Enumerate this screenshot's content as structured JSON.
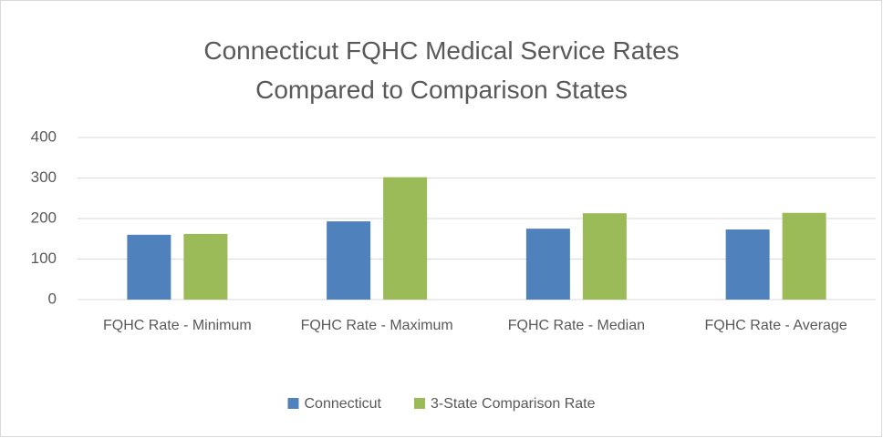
{
  "chart_data": {
    "type": "bar",
    "title": "Connecticut FQHC Medical Service Rates Compared to Comparison States",
    "categories": [
      "FQHC Rate - Minimum",
      "FQHC Rate - Maximum",
      "FQHC Rate - Median",
      "FQHC Rate - Average"
    ],
    "series": [
      {
        "name": "Connecticut",
        "color": "#4f81bd",
        "values": [
          160,
          193,
          175,
          173
        ]
      },
      {
        "name": "3-State Comparison Rate",
        "color": "#9bbb59",
        "values": [
          162,
          302,
          213,
          214
        ]
      }
    ],
    "ylim": [
      0,
      400
    ],
    "yticks": [
      0,
      100,
      200,
      300,
      400
    ],
    "grid": true,
    "legend": "bottom"
  }
}
